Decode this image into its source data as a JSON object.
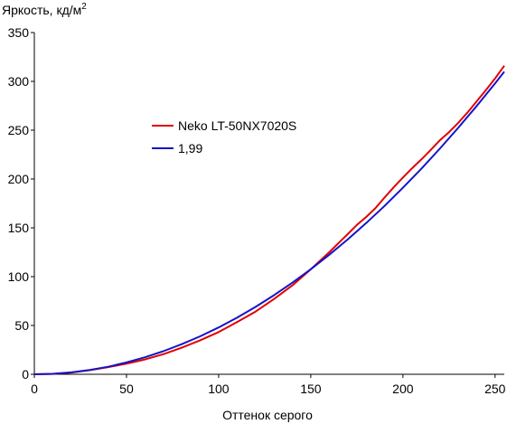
{
  "chart_data": {
    "type": "line",
    "title": "",
    "ylabel": "Яркость, кд/м",
    "ylabel_superscript": "2",
    "xlabel": "Оттенок серого",
    "xlim": [
      0,
      255
    ],
    "ylim": [
      0,
      350
    ],
    "xticks": [
      0,
      50,
      100,
      150,
      200,
      250
    ],
    "yticks": [
      0,
      50,
      100,
      150,
      200,
      250,
      300,
      350
    ],
    "grid": false,
    "legend_position": "center-left",
    "series": [
      {
        "name": "Neko LT-50NX7020S",
        "color": "#e00000",
        "x": [
          0,
          10,
          20,
          30,
          40,
          50,
          60,
          70,
          80,
          90,
          100,
          110,
          120,
          130,
          140,
          150,
          160,
          170,
          175,
          180,
          185,
          190,
          195,
          200,
          205,
          210,
          215,
          220,
          225,
          230,
          235,
          240,
          245,
          250,
          255
        ],
        "y": [
          0,
          0.4,
          1.8,
          4.2,
          7.3,
          10.8,
          15.2,
          20.6,
          27.2,
          34.8,
          43.2,
          53.4,
          64.2,
          77.0,
          91.0,
          107.5,
          125.0,
          143.5,
          153.0,
          161.0,
          170.0,
          181.0,
          191.5,
          201.5,
          211.0,
          220.0,
          229.5,
          239.5,
          248.0,
          257.5,
          268.0,
          279.5,
          291.0,
          303.0,
          316.0
        ]
      },
      {
        "name": "1,99",
        "color": "#1414c8",
        "gamma": 1.99,
        "x": [
          0,
          10,
          20,
          30,
          40,
          50,
          60,
          70,
          80,
          90,
          100,
          110,
          120,
          130,
          140,
          150,
          160,
          170,
          180,
          190,
          200,
          210,
          220,
          230,
          240,
          250,
          255
        ],
        "y": [
          0,
          0.5,
          1.9,
          4.4,
          7.7,
          12.1,
          17.4,
          23.6,
          30.8,
          38.9,
          48.0,
          58.0,
          69.0,
          80.9,
          93.8,
          107.6,
          122.4,
          138.1,
          154.8,
          172.4,
          191.0,
          210.5,
          231.0,
          252.4,
          274.7,
          298.0,
          310.0
        ]
      }
    ]
  }
}
